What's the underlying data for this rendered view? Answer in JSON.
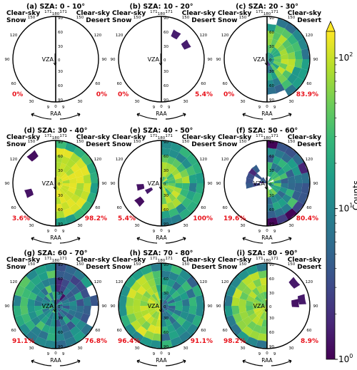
{
  "chart_data": {
    "type": "heatmap",
    "common": {
      "left_label_line1": "Clear-sky",
      "left_label_line2": "Snow",
      "right_label_line1": "Clear-sky",
      "right_label_line2": "Desert",
      "vza_label": "VZA",
      "raa_label": "RAA",
      "vza_ticks": [
        "0",
        "30",
        "60",
        "90"
      ],
      "raa_tick_labels": [
        "180",
        "171",
        "150",
        "120",
        "90",
        "60",
        "30",
        "9",
        "0"
      ]
    },
    "colorbar": {
      "label": "Counts",
      "scale": "log",
      "range": [
        1,
        150
      ],
      "tick_values": [
        1,
        10,
        100
      ],
      "tick_labels": [
        "10",
        "10",
        "10"
      ],
      "tick_exponents": [
        "0",
        "1",
        "2"
      ],
      "colormap": "viridis"
    },
    "panels": [
      {
        "title": "(a) SZA: 0 - 10°",
        "snow_pct": "0%",
        "desert_pct": "0%",
        "snow_cells": [],
        "desert_cells": []
      },
      {
        "title": "(b) SZA: 10 - 20°",
        "snow_pct": "0%",
        "desert_pct": "5.4%",
        "snow_cells": [],
        "desert_cells": [
          [
            60,
            150,
            1.5
          ],
          [
            60,
            120,
            1.5
          ]
        ]
      },
      {
        "title": "(c) SZA: 20 - 30°",
        "snow_pct": "0%",
        "desert_pct": "83.9%",
        "snow_cells": [],
        "desert_cells": "fill:c"
      },
      {
        "title": "(d) SZA: 30 - 40°",
        "snow_pct": "3.6%",
        "desert_pct": "98.2%",
        "snow_cells": [
          [
            75,
            140,
            1.2
          ],
          [
            60,
            70,
            1.3
          ]
        ],
        "desert_cells": "fill:d"
      },
      {
        "title": "(e) SZA: 40 - 50°",
        "snow_pct": "5.4%",
        "desert_pct": "100%",
        "snow_cells": [
          [
            45,
            80,
            1.3
          ],
          [
            30,
            60,
            1.4
          ],
          [
            60,
            50,
            1.2
          ]
        ],
        "desert_cells": "fill:e"
      },
      {
        "title": "(f) SZA: 50 - 60°",
        "snow_pct": "19.6%",
        "desert_pct": "80.4%",
        "snow_cells": "fill:f_snow",
        "desert_cells": "fill:f"
      },
      {
        "title": "(g) SZA: 60 - 70°",
        "snow_pct": "91.1%",
        "desert_pct": "76.8%",
        "snow_cells": "fill:g_snow",
        "desert_cells": "fill:g"
      },
      {
        "title": "(h) SZA: 70 - 80°",
        "snow_pct": "96.4%",
        "desert_pct": "91.1%",
        "snow_cells": "fill:h_snow",
        "desert_cells": "fill:h"
      },
      {
        "title": "(i) SZA: 80 - 90°",
        "snow_pct": "98.2%",
        "desert_pct": "8.9%",
        "snow_cells": "fill:i_snow",
        "desert_cells": [
          [
            75,
            130,
            1.4
          ],
          [
            75,
            100,
            1.4
          ],
          [
            60,
            95,
            1.3
          ]
        ]
      }
    ],
    "percent_color": "#e8111a"
  }
}
